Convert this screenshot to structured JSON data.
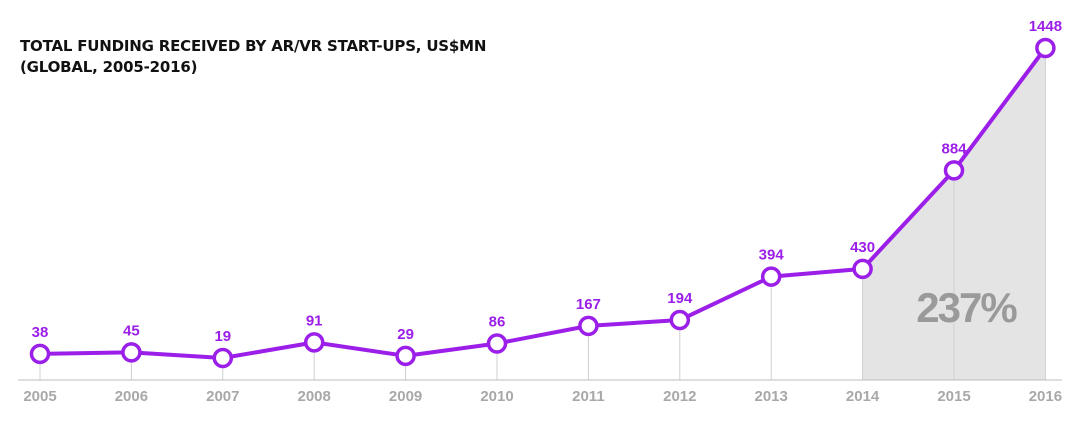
{
  "chart_data": {
    "type": "line",
    "title_lines": [
      "TOTAL FUNDING RECEIVED BY AR/VR START-UPS, US$MN",
      "(GLOBAL, 2005-2016)"
    ],
    "categories": [
      "2005",
      "2006",
      "2007",
      "2008",
      "2009",
      "2010",
      "2011",
      "2012",
      "2013",
      "2014",
      "2015",
      "2016"
    ],
    "values": [
      38,
      45,
      19,
      91,
      29,
      86,
      167,
      194,
      394,
      430,
      884,
      1448
    ],
    "data_labels": [
      "38",
      "45",
      "19",
      "91",
      "29",
      "86",
      "167",
      "194",
      "394",
      "430",
      "884",
      "1448"
    ],
    "ylim": [
      0,
      1448
    ],
    "grid": false,
    "highlight": {
      "from": "2014",
      "to": "2016",
      "label": "237%"
    },
    "colors": {
      "line": "#9b1fe8",
      "marker_fill": "#ffffff",
      "label": "#9b1fe8",
      "highlight_fill": "#e4e4e4",
      "annotation": "#9a9a9a",
      "drop_line": "#d0d0d0",
      "axis": "#bdbdbd"
    }
  }
}
